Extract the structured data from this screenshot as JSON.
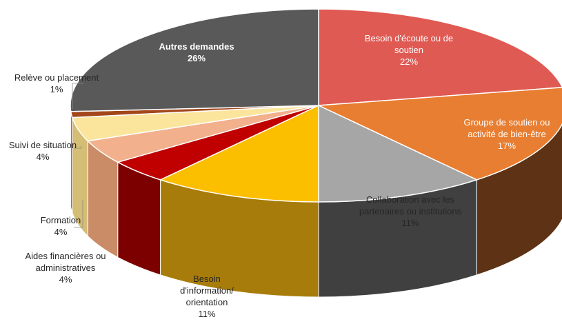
{
  "chart_data": {
    "type": "pie",
    "style": "3d",
    "title": "",
    "slices": [
      {
        "label": "Besoin d'écoute ou de soutien",
        "display": [
          "Besoin d'écoute ou de",
          "soutien"
        ],
        "pct_label": "22%",
        "value": 22,
        "color": "#e05a54",
        "side_color": "#8c2f2b",
        "label_color": "#ffffff"
      },
      {
        "label": "Groupe de soutien ou activité de bien-être",
        "display": [
          "Groupe de soutien ou",
          "activité de bien-être"
        ],
        "pct_label": "17%",
        "value": 17,
        "color": "#e87e31",
        "side_color": "#5e3214",
        "label_color": "#ffffff"
      },
      {
        "label": "Collaboration avec les partenaires ou institutions",
        "display": [
          "Collaboration avec les",
          "partenaires ou institutions"
        ],
        "pct_label": "11%",
        "value": 11,
        "color": "#a6a6a6",
        "side_color": "#404040",
        "label_color": "#262626"
      },
      {
        "label": "Besoin d'information/ orientation",
        "display": [
          "Besoin",
          "d'information/",
          "orientation"
        ],
        "pct_label": "11%",
        "value": 11,
        "color": "#fcbf00",
        "side_color": "#a87c0a",
        "label_color": "#262626"
      },
      {
        "label": "Aides financières ou administratives",
        "display": [
          "Aides financières ou",
          "administratives"
        ],
        "pct_label": "4%",
        "value": 4,
        "color": "#c00000",
        "side_color": "#7c0000",
        "label_color": "#262626"
      },
      {
        "label": "Formation",
        "display": [
          "Formation"
        ],
        "pct_label": "4%",
        "value": 4,
        "color": "#f2b08c",
        "side_color": "#c98c66",
        "label_color": "#262626"
      },
      {
        "label": "Suivi de situation",
        "display": [
          "Suivi de situation"
        ],
        "pct_label": "4%",
        "value": 4,
        "color": "#fbe59c",
        "side_color": "#d4bd74",
        "label_color": "#262626"
      },
      {
        "label": "Relève ou placement",
        "display": [
          "Relève ou placement"
        ],
        "pct_label": "1%",
        "value": 1,
        "color": "#a3471b",
        "side_color": "#6b2d10",
        "label_color": "#262626"
      },
      {
        "label": "Autres demandes",
        "display": [
          "Autres demandes"
        ],
        "pct_label": "26%",
        "value": 26,
        "color": "#595959",
        "side_color": "#333333",
        "label_color": "#ffffff"
      }
    ]
  }
}
